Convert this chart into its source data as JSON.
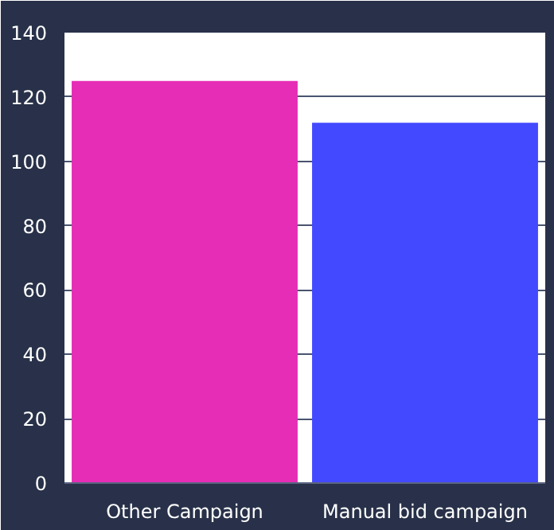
{
  "chart_data": {
    "type": "bar",
    "categories": [
      "Other Campaign",
      "Manual bid campaign"
    ],
    "values": [
      125,
      112
    ],
    "colors": [
      "#e52db5",
      "#4349ff"
    ],
    "ylim": [
      0,
      140
    ],
    "yticks": [
      0,
      20,
      40,
      60,
      80,
      100,
      120,
      140
    ],
    "grid": "y"
  }
}
